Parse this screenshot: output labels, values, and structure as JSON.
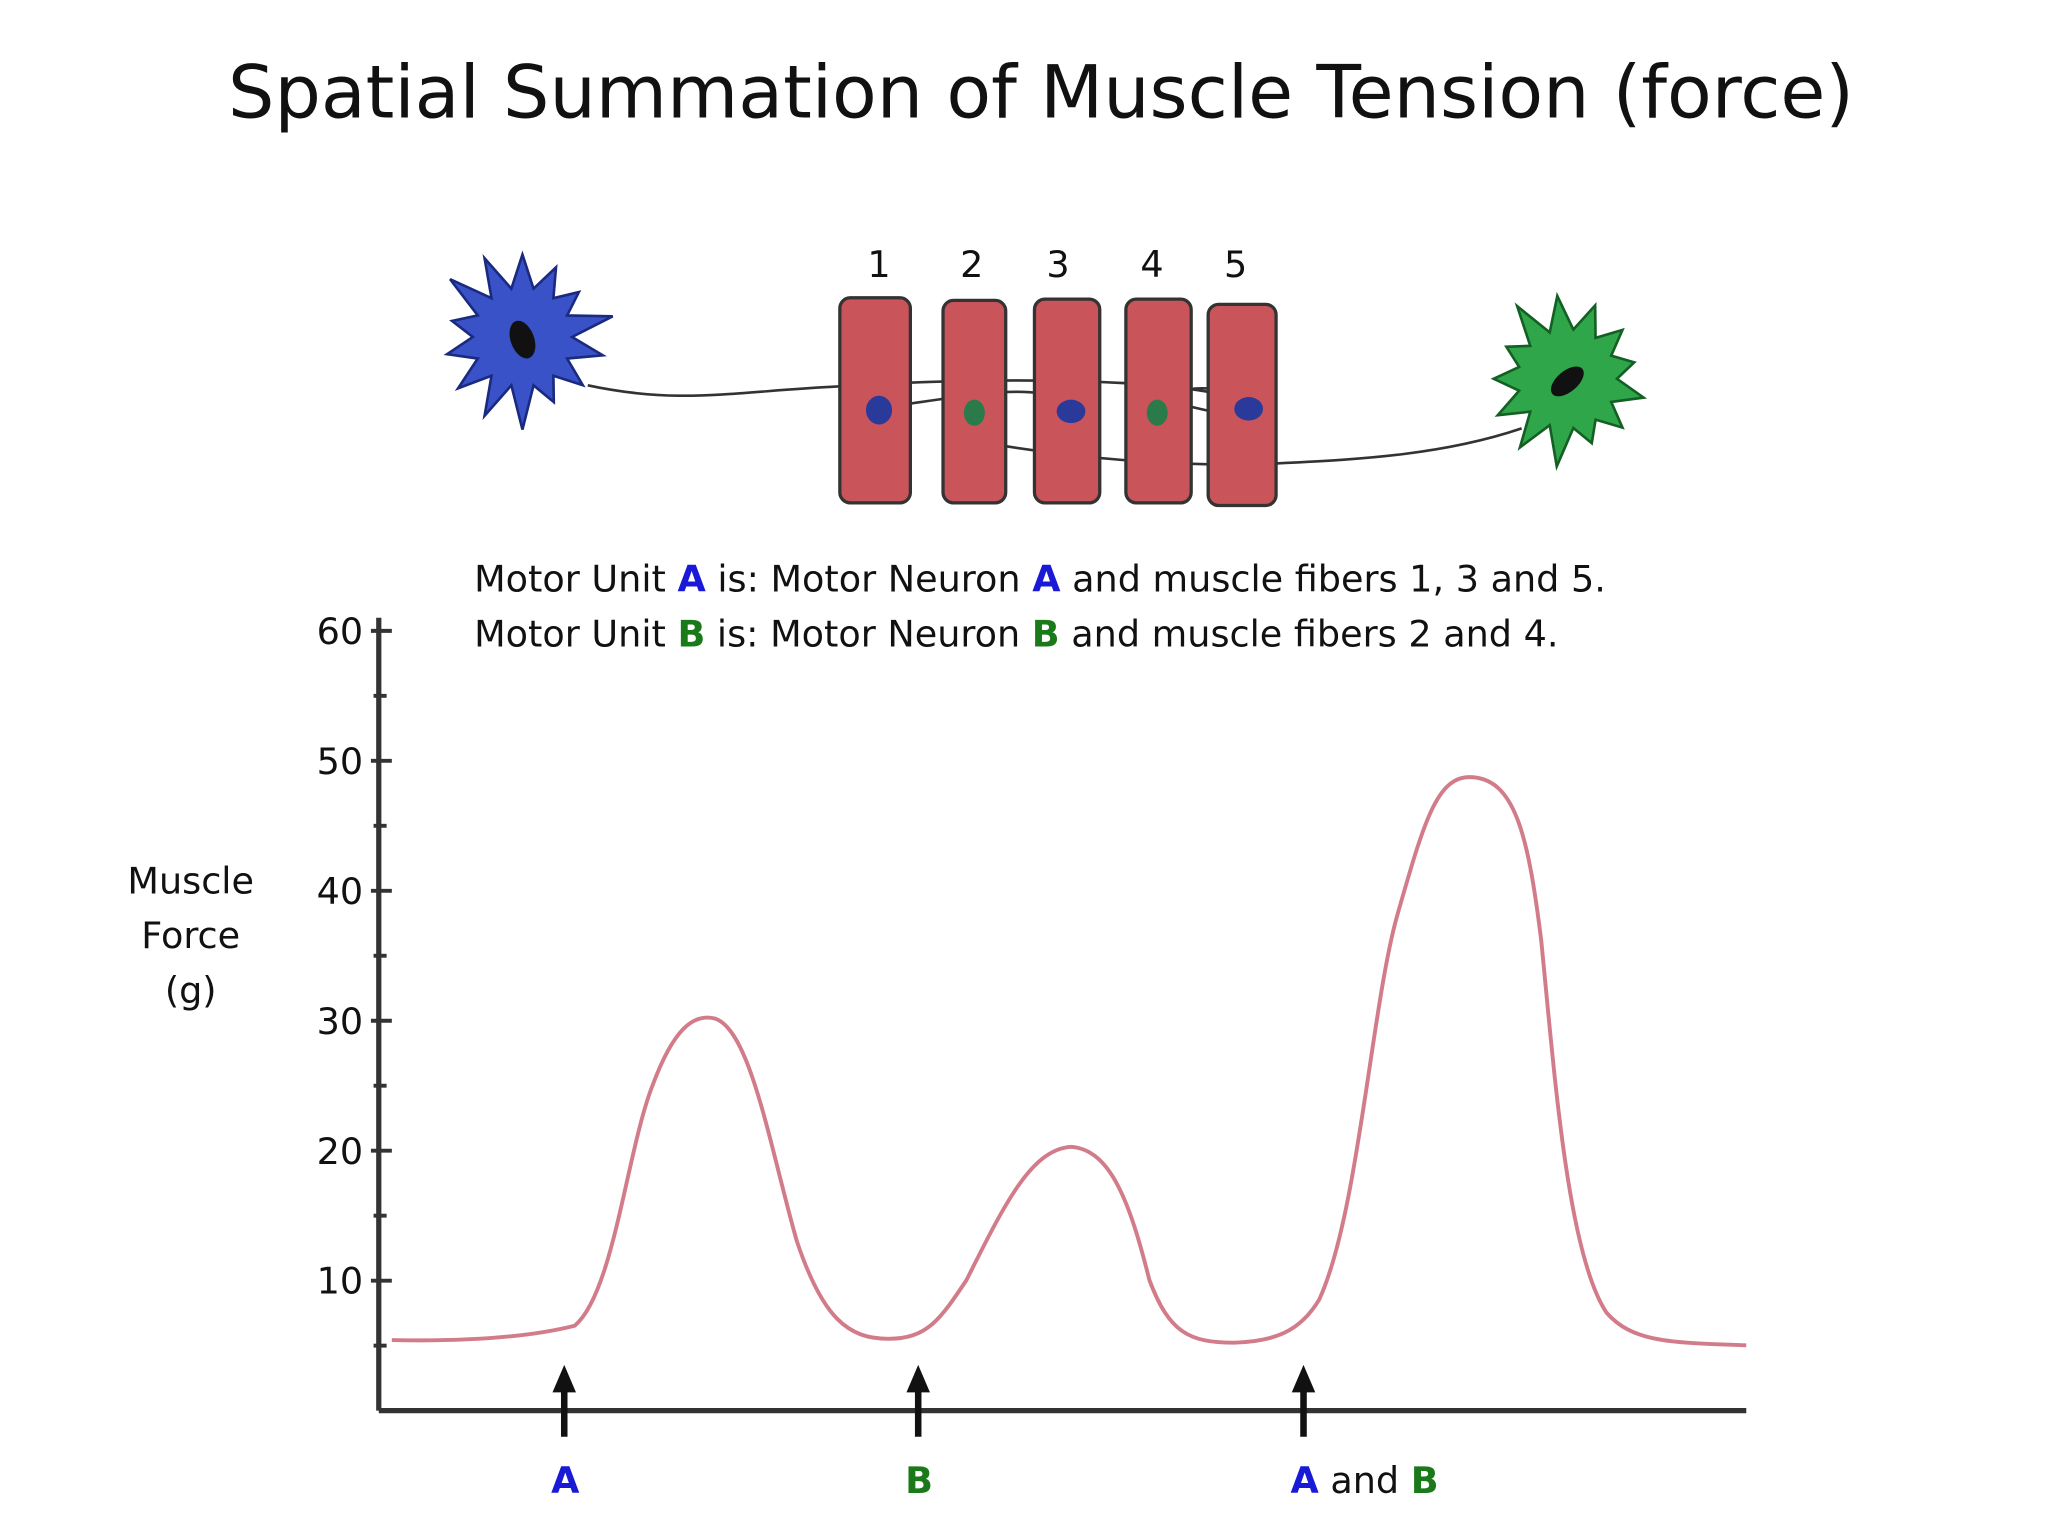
{
  "title": "Spatial Summation of Muscle Tension (force)",
  "fiber_labels": [
    "1",
    "2",
    "3",
    "4",
    "5"
  ],
  "description": [
    [
      {
        "text": "Motor Unit "
      },
      {
        "text": "A",
        "color": "#1a1ad6"
      },
      {
        "text": " is: Motor Neuron "
      },
      {
        "text": "A",
        "color": "#1a1ad6"
      },
      {
        "text": " and muscle fibers 1, 3 and 5."
      }
    ],
    [
      {
        "text": "Motor Unit "
      },
      {
        "text": "B",
        "color": "#1a7a1a"
      },
      {
        "text": " is: Motor Neuron "
      },
      {
        "text": "B",
        "color": "#1a7a1a"
      },
      {
        "text": " and muscle fibers 2 and 4."
      }
    ]
  ],
  "y_axis": {
    "label": [
      "Muscle",
      "Force",
      "(g)"
    ],
    "ylim": [
      0,
      60
    ],
    "yticks": [
      10,
      20,
      30,
      40,
      50,
      60
    ]
  },
  "stimuli": [
    [
      {
        "text": "A",
        "color": "#1a1ad6"
      }
    ],
    [
      {
        "text": "B",
        "color": "#1a7a1a"
      }
    ],
    [
      {
        "text": "A",
        "color": "#1a1ad6"
      },
      {
        "text": " and "
      },
      {
        "text": "B",
        "color": "#1a7a1a"
      }
    ]
  ]
}
